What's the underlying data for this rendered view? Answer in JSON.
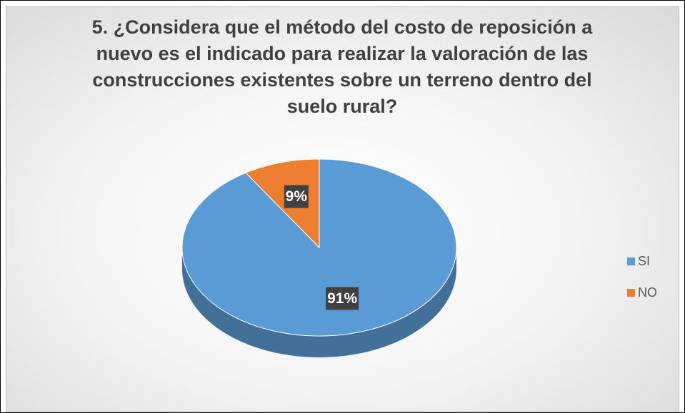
{
  "chart_data": {
    "type": "pie",
    "title": "5. ¿Considera que el método del costo de reposición a nuevo es el indicado para realizar la valoración de las construcciones existentes sobre un terreno dentro del suelo rural?",
    "categories": [
      "SI",
      "NO"
    ],
    "values": [
      91,
      9
    ],
    "value_labels": [
      "91%",
      "9%"
    ],
    "colors": [
      "#5b9bd5",
      "#ed7d31"
    ],
    "legend": "right"
  }
}
